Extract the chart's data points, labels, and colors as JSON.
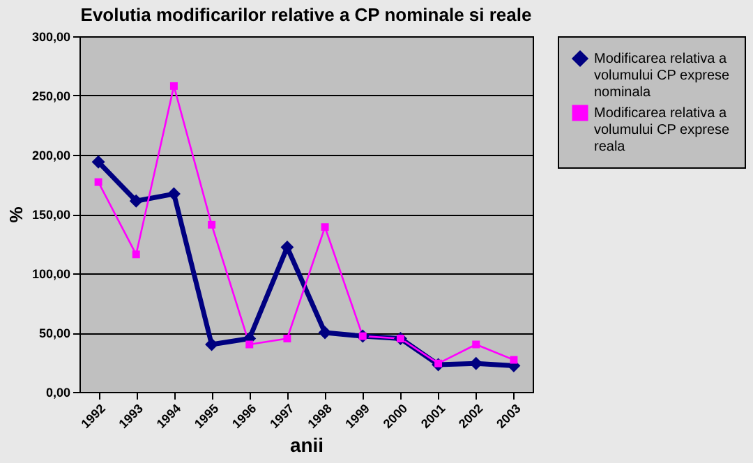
{
  "chart_data": {
    "type": "line",
    "title": "Evolutia modificarilor relative a CP nominale si reale",
    "xlabel": "anii",
    "ylabel": "%",
    "categories": [
      "1992",
      "1993",
      "1994",
      "1995",
      "1996",
      "1997",
      "1998",
      "1999",
      "2000",
      "2001",
      "2002",
      "2003"
    ],
    "series": [
      {
        "name": "Modificarea relativa a volumului CP exprese nominala",
        "color": "#000080",
        "marker": "diamond",
        "values": [
          194,
          161,
          167,
          40,
          45,
          122,
          50,
          47,
          45,
          23,
          24,
          22
        ]
      },
      {
        "name": "Modificarea relativa a volumului CP exprese reala",
        "color": "#ff00ff",
        "marker": "square",
        "values": [
          177,
          116,
          258,
          141,
          40,
          45,
          139,
          47,
          45,
          24,
          40,
          27
        ]
      }
    ],
    "ylim": [
      0,
      300
    ],
    "yticks": [
      {
        "value": 0,
        "label": "0,00"
      },
      {
        "value": 50,
        "label": "50,00"
      },
      {
        "value": 100,
        "label": "100,00"
      },
      {
        "value": 150,
        "label": "150,00"
      },
      {
        "value": 200,
        "label": "200,00"
      },
      {
        "value": 250,
        "label": "250,00"
      },
      {
        "value": 300,
        "label": "300,00"
      }
    ],
    "grid": "y",
    "legend": "right",
    "line_style": "solid"
  }
}
